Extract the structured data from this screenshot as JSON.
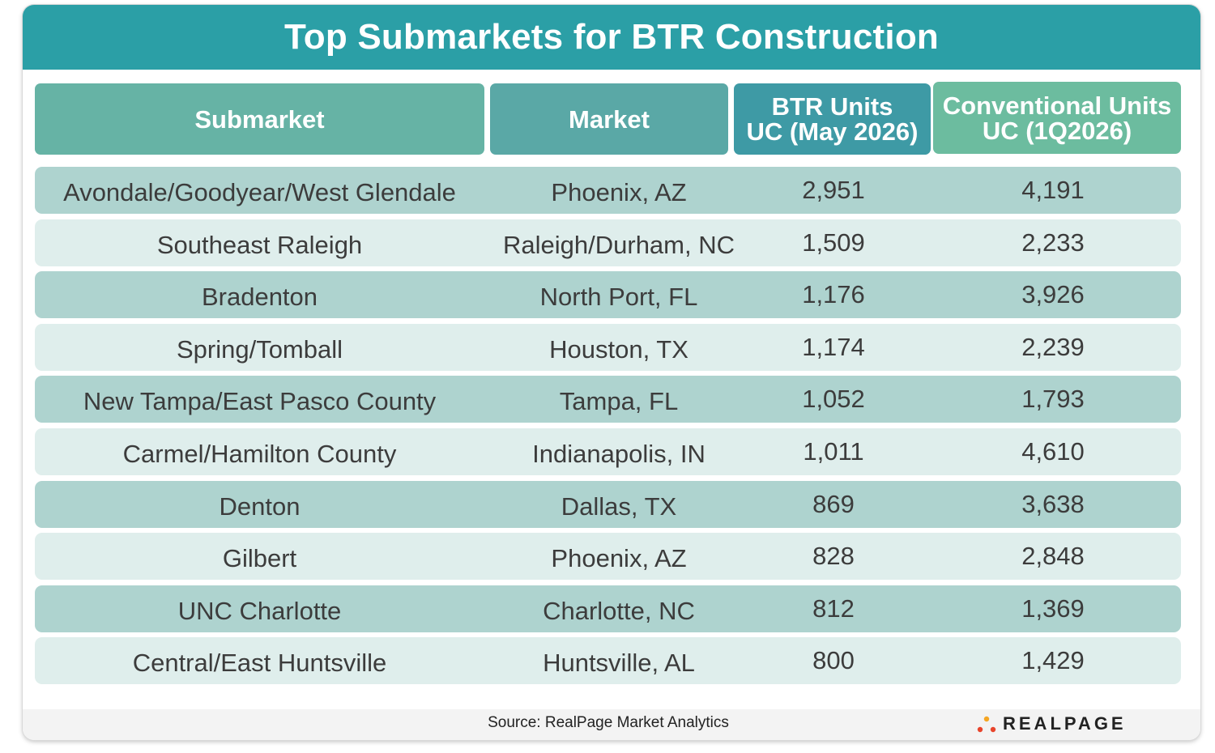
{
  "chart_data": {
    "type": "table",
    "title": "Top Submarkets for BTR Construction",
    "columns": [
      "Submarket",
      "Market",
      [
        "BTR Units",
        "UC (May 2026)"
      ],
      [
        "Conventional Units",
        "UC (1Q2026)"
      ]
    ],
    "rows": [
      [
        "Avondale/Goodyear/West Glendale",
        "Phoenix, AZ",
        "2,951",
        "4,191"
      ],
      [
        "Southeast Raleigh",
        "Raleigh/Durham, NC",
        "1,509",
        "2,233"
      ],
      [
        "Bradenton",
        "North Port, FL",
        "1,176",
        "3,926"
      ],
      [
        "Spring/Tomball",
        "Houston, TX",
        "1,174",
        "2,239"
      ],
      [
        "New Tampa/East Pasco County",
        "Tampa, FL",
        "1,052",
        "1,793"
      ],
      [
        "Carmel/Hamilton County",
        "Indianapolis, IN",
        "1,011",
        "4,610"
      ],
      [
        "Denton",
        "Dallas, TX",
        "869",
        "3,638"
      ],
      [
        "Gilbert",
        "Phoenix, AZ",
        "828",
        "2,848"
      ],
      [
        "UNC Charlotte",
        "Charlotte, NC",
        "812",
        "1,369"
      ],
      [
        "Central/East Huntsville",
        "Huntsville, AL",
        "800",
        "1,429"
      ]
    ],
    "source": "Source:  RealPage Market Analytics"
  },
  "logo": {
    "text": "REALPAGE",
    "icon": "realpage-dots-icon",
    "colors": [
      "#e8442b",
      "#f5a623",
      "#e8442b"
    ]
  },
  "colors": {
    "title_bar": "#2b9fa6",
    "row_dark": "#aed3cf",
    "row_light": "#dfeeec"
  }
}
